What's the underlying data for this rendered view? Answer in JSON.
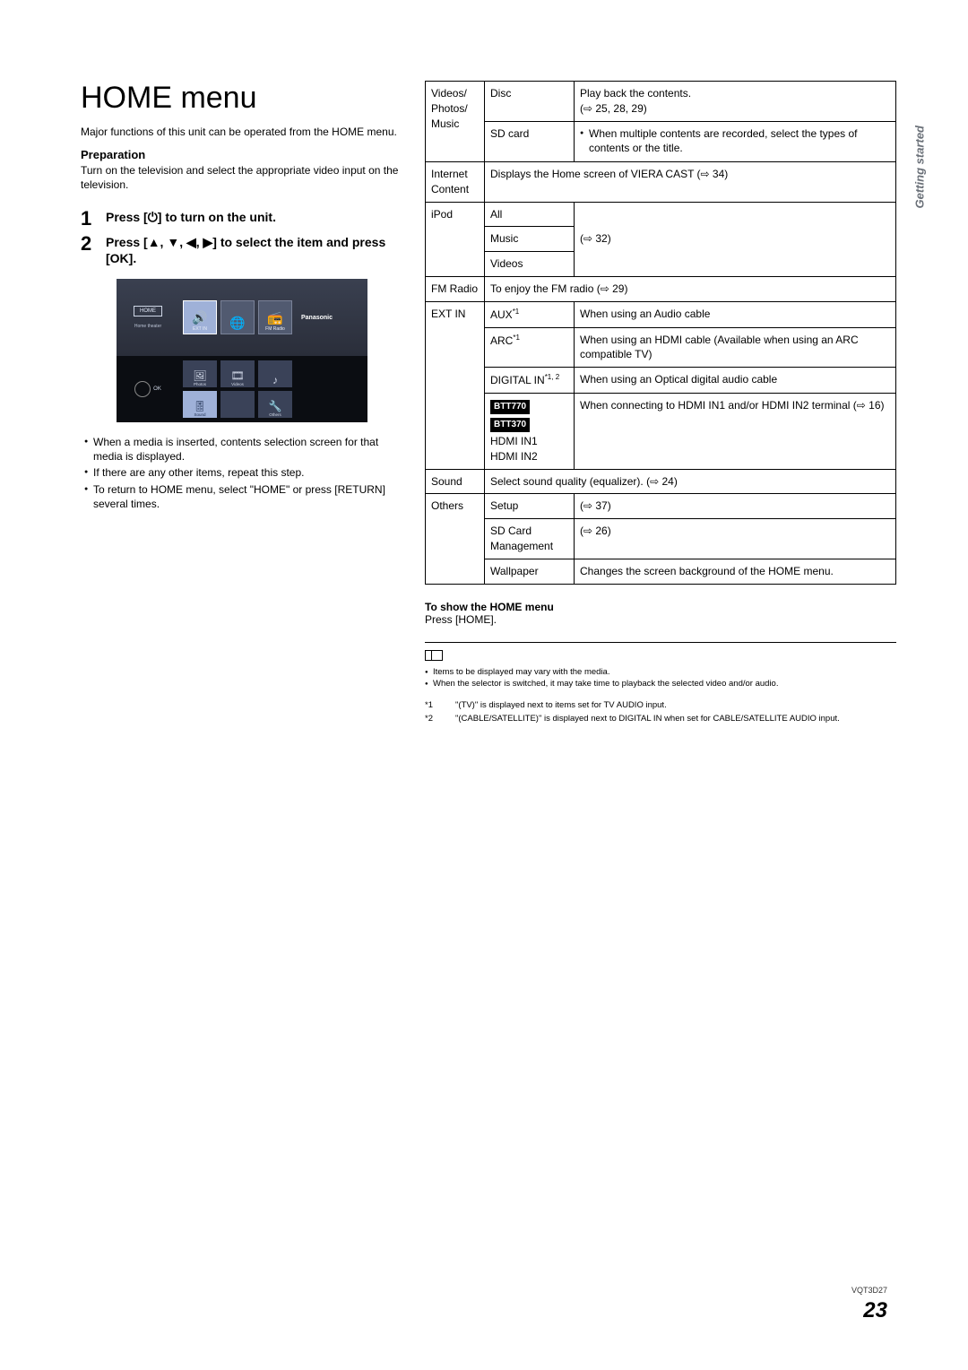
{
  "side_tab": "Getting started",
  "doc_code": "VQT3D27",
  "page_number": "23",
  "title": "HOME menu",
  "intro": "Major functions of this unit can be operated from the HOME menu.",
  "prep_label": "Preparation",
  "prep_text": "Turn on the television and select the appropriate video input on the television.",
  "steps": {
    "s1_num": "1",
    "s1_text": "Press [⏻] to turn on the unit.",
    "s2_num": "2",
    "s2_text": "Press [▲, ▼, ◀, ▶] to select the item and press [OK]."
  },
  "screenshot": {
    "home_label": "HOME",
    "home_sub": "Home theater",
    "ok_label": "OK",
    "panasonic": "Panasonic",
    "top_tiles": [
      {
        "label": "EXT IN",
        "selected": true
      },
      {
        "label": "",
        "selected": false
      },
      {
        "label": "FM Radio",
        "selected": false
      }
    ],
    "grid_tiles": [
      {
        "label": "Photos",
        "selected": false
      },
      {
        "label": "Videos",
        "selected": false
      },
      {
        "label": "",
        "selected": false
      },
      {
        "label": "Sound",
        "selected": true
      },
      {
        "label": "",
        "selected": false
      },
      {
        "label": "Others",
        "selected": false
      }
    ]
  },
  "bullets": [
    "When a media is inserted, contents selection screen for that media is displayed.",
    "If there are any other items, repeat this step.",
    "To return to HOME menu, select \"HOME\" or press [RETURN] several times."
  ],
  "table": {
    "r1_cat": "Videos/\nPhotos/\nMusic",
    "r1_sub1": "Disc",
    "r1_desc1": "Play back the contents.\n(⇨ 25, 28, 29)",
    "r1_sub2": "SD card",
    "r1_desc2": "When multiple contents are recorded, select the types of contents or the title.",
    "r2_cat": "Internet Content",
    "r2_desc": "Displays the Home screen of VIERA CAST (⇨ 34)",
    "r3_cat": "iPod",
    "r3_sub1": "All",
    "r3_sub2": "Music",
    "r3_sub3": "Videos",
    "r3_desc": "(⇨ 32)",
    "r4_cat": "FM Radio",
    "r4_desc": "To enjoy the FM radio (⇨ 29)",
    "r5_cat": "EXT IN",
    "r5_sub1": "AUX",
    "r5_sub1_sup": "*1",
    "r5_desc1": "When using an Audio cable",
    "r5_sub2": "ARC",
    "r5_sub2_sup": "*1",
    "r5_desc2": "When using an HDMI cable (Available when using an ARC compatible TV)",
    "r5_sub3": "DIGITAL IN",
    "r5_sub3_sup": "*1, 2",
    "r5_desc3": "When using an Optical digital audio cable",
    "r5_sub4_badge1": "BTT770",
    "r5_sub4_badge2": "BTT370",
    "r5_sub4_l1": "HDMI IN1",
    "r5_sub4_l2": "HDMI IN2",
    "r5_desc4": "When connecting to HDMI IN1 and/or HDMI IN2 terminal (⇨ 16)",
    "r6_cat": "Sound",
    "r6_desc": "Select sound quality (equalizer). (⇨ 24)",
    "r7_cat": "Others",
    "r7_sub1": "Setup",
    "r7_desc1": "(⇨ 37)",
    "r7_sub2": "SD Card Management",
    "r7_desc2": "(⇨ 26)",
    "r7_sub3": "Wallpaper",
    "r7_desc3": "Changes the screen background of the HOME menu."
  },
  "show_home_label": "To show the HOME menu",
  "show_home_text": "Press [HOME].",
  "notes": [
    "Items to be displayed may vary with the media.",
    "When the selector is switched, it may take time to playback the selected video and/or audio."
  ],
  "footnotes": {
    "f1_key": "*1",
    "f1_text": "\"(TV)\" is displayed next to items set for TV AUDIO input.",
    "f2_key": "*2",
    "f2_text": "\"(CABLE/SATELLITE)\" is displayed next to DIGITAL IN when set for CABLE/SATELLITE AUDIO input."
  }
}
